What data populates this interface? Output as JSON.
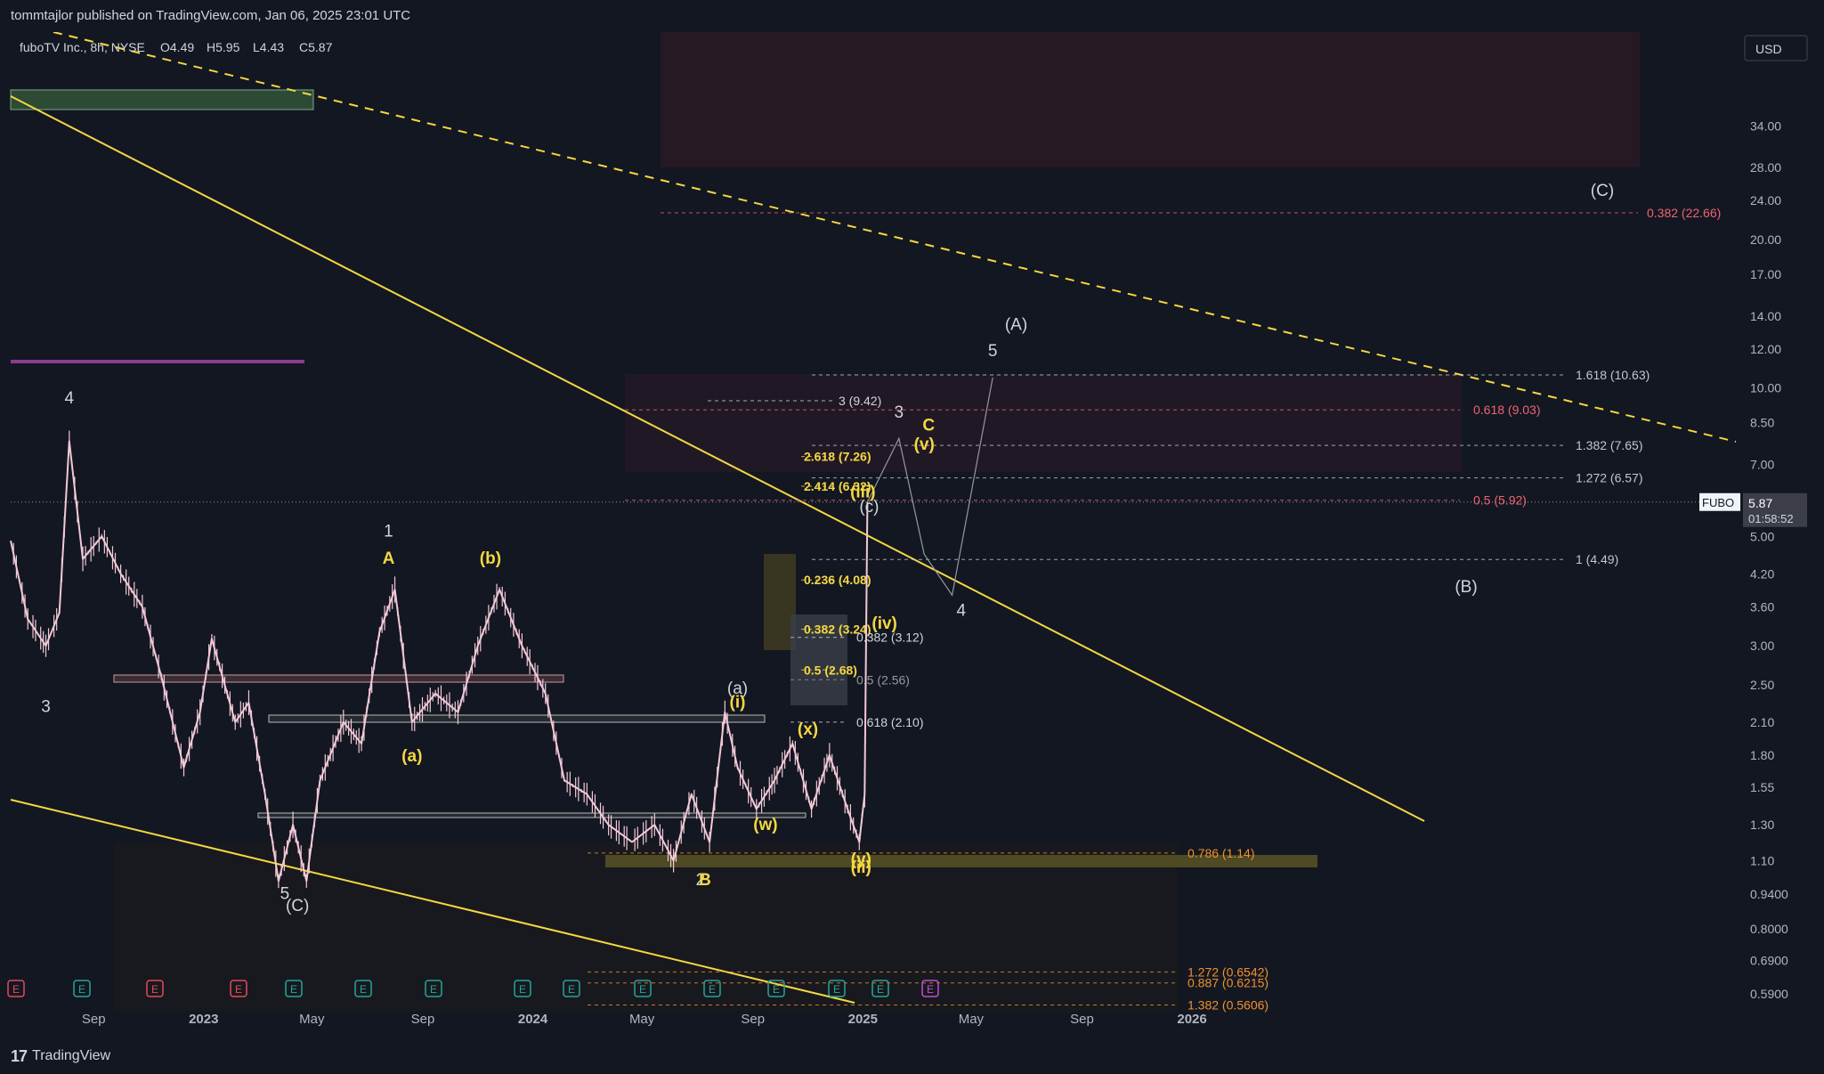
{
  "header": {
    "published": "tommtajlor published on TradingView.com, Jan 06, 2025 23:01 UTC"
  },
  "footer": {
    "logo": "17",
    "brand": "TradingView"
  },
  "chart_data": {
    "type": "line",
    "symbol_info": "fuboTV Inc., 8h, NYSE",
    "ohlc": [
      {
        "label": "O",
        "value": "4.49"
      },
      {
        "label": "H",
        "value": "5.95"
      },
      {
        "label": "L",
        "value": "4.43"
      },
      {
        "label": "C",
        "value": "5.87"
      }
    ],
    "currency": "USD",
    "ticker": "FUBO",
    "last_price": "5.87",
    "countdown": "01:58:52",
    "price_axis_scale": "log",
    "y_ticks": [
      "34.00",
      "28.00",
      "24.00",
      "20.00",
      "17.00",
      "14.00",
      "12.00",
      "10.00",
      "8.50",
      "7.00",
      "5.00",
      "4.20",
      "3.60",
      "3.00",
      "2.50",
      "2.10",
      "1.80",
      "1.55",
      "1.30",
      "1.10",
      "0.9400",
      "0.8000",
      "0.6900",
      "0.5900"
    ],
    "x_ticks": [
      {
        "label": "Sep",
        "date": "2022-09-01"
      },
      {
        "label": "2023",
        "date": "2023-01-01"
      },
      {
        "label": "May",
        "date": "2023-05-01"
      },
      {
        "label": "Sep",
        "date": "2023-09-01"
      },
      {
        "label": "2024",
        "date": "2024-01-01"
      },
      {
        "label": "May",
        "date": "2024-05-01"
      },
      {
        "label": "Sep",
        "date": "2024-09-01"
      },
      {
        "label": "2025",
        "date": "2025-01-01"
      },
      {
        "label": "May",
        "date": "2025-05-01"
      },
      {
        "label": "Sep",
        "date": "2025-09-01"
      },
      {
        "label": "2026",
        "date": "2026-01-01"
      }
    ],
    "series": [
      {
        "values": [
          {
            "x": "2022-06-01",
            "y": 4.9
          },
          {
            "x": "2022-06-20",
            "y": 3.4
          },
          {
            "x": "2022-07-10",
            "y": 3.0
          },
          {
            "x": "2022-07-25",
            "y": 3.5
          },
          {
            "x": "2022-08-05",
            "y": 7.8
          },
          {
            "x": "2022-08-20",
            "y": 4.5
          },
          {
            "x": "2022-09-10",
            "y": 5.0
          },
          {
            "x": "2022-10-01",
            "y": 4.2
          },
          {
            "x": "2022-10-25",
            "y": 3.6
          },
          {
            "x": "2022-11-15",
            "y": 2.6
          },
          {
            "x": "2022-12-10",
            "y": 1.7
          },
          {
            "x": "2022-12-28",
            "y": 2.2
          },
          {
            "x": "2023-01-10",
            "y": 3.1
          },
          {
            "x": "2023-02-05",
            "y": 2.1
          },
          {
            "x": "2023-02-20",
            "y": 2.3
          },
          {
            "x": "2023-03-10",
            "y": 1.5
          },
          {
            "x": "2023-03-25",
            "y": 1.0
          },
          {
            "x": "2023-04-10",
            "y": 1.3
          },
          {
            "x": "2023-04-25",
            "y": 1.0
          },
          {
            "x": "2023-05-10",
            "y": 1.6
          },
          {
            "x": "2023-06-05",
            "y": 2.1
          },
          {
            "x": "2023-06-25",
            "y": 1.9
          },
          {
            "x": "2023-07-15",
            "y": 3.2
          },
          {
            "x": "2023-08-01",
            "y": 3.9
          },
          {
            "x": "2023-08-20",
            "y": 2.1
          },
          {
            "x": "2023-09-15",
            "y": 2.4
          },
          {
            "x": "2023-10-10",
            "y": 2.2
          },
          {
            "x": "2023-11-01",
            "y": 3.0
          },
          {
            "x": "2023-11-25",
            "y": 3.9
          },
          {
            "x": "2023-12-20",
            "y": 3.0
          },
          {
            "x": "2024-01-15",
            "y": 2.4
          },
          {
            "x": "2024-02-05",
            "y": 1.6
          },
          {
            "x": "2024-03-01",
            "y": 1.5
          },
          {
            "x": "2024-03-25",
            "y": 1.3
          },
          {
            "x": "2024-04-20",
            "y": 1.2
          },
          {
            "x": "2024-05-15",
            "y": 1.3
          },
          {
            "x": "2024-06-05",
            "y": 1.1
          },
          {
            "x": "2024-06-25",
            "y": 1.5
          },
          {
            "x": "2024-07-15",
            "y": 1.2
          },
          {
            "x": "2024-08-01",
            "y": 2.2
          },
          {
            "x": "2024-08-15",
            "y": 1.7
          },
          {
            "x": "2024-09-05",
            "y": 1.4
          },
          {
            "x": "2024-09-25",
            "y": 1.6
          },
          {
            "x": "2024-10-15",
            "y": 1.9
          },
          {
            "x": "2024-11-05",
            "y": 1.4
          },
          {
            "x": "2024-11-25",
            "y": 1.8
          },
          {
            "x": "2024-12-15",
            "y": 1.4
          },
          {
            "x": "2024-12-28",
            "y": 1.2
          },
          {
            "x": "2025-01-03",
            "y": 1.5
          },
          {
            "x": "2025-01-06",
            "y": 5.87
          }
        ]
      }
    ],
    "wave_labels": [
      {
        "text": "4",
        "x": "2022-08-05",
        "y": 9.3,
        "color": "#d1d4dc"
      },
      {
        "text": "3",
        "x": "2022-07-10",
        "y": 2.2,
        "color": "#d1d4dc"
      },
      {
        "text": "5",
        "x": "2023-04-01",
        "y": 0.92,
        "color": "#d1d4dc"
      },
      {
        "text": "(C)",
        "x": "2023-04-15",
        "y": 0.87,
        "color": "#d1d4dc"
      },
      {
        "text": "1",
        "x": "2023-07-25",
        "y": 5.0,
        "color": "#d1d4dc"
      },
      {
        "text": "A",
        "x": "2023-07-25",
        "y": 4.4,
        "color": "#f5d742"
      },
      {
        "text": "(a)",
        "x": "2023-08-20",
        "y": 1.75,
        "color": "#f5d742"
      },
      {
        "text": "(b)",
        "x": "2023-11-15",
        "y": 4.4,
        "color": "#f5d742"
      },
      {
        "text": "2",
        "x": "2024-07-05",
        "y": 0.98,
        "color": "#d1d4dc"
      },
      {
        "text": "B",
        "x": "2024-07-10",
        "y": 0.98,
        "color": "#f5d742"
      },
      {
        "text": "(a)",
        "x": "2024-08-15",
        "y": 2.4,
        "color": "#d1d4dc"
      },
      {
        "text": "(i)",
        "x": "2024-08-15",
        "y": 2.25,
        "color": "#f5d742"
      },
      {
        "text": "(w)",
        "x": "2024-09-15",
        "y": 1.27,
        "color": "#f5d742"
      },
      {
        "text": "(x)",
        "x": "2024-11-01",
        "y": 1.98,
        "color": "#f5d742"
      },
      {
        "text": "(y)",
        "x": "2024-12-30",
        "y": 1.08,
        "color": "#f5d742"
      },
      {
        "text": "(ii)",
        "x": "2024-12-30",
        "y": 1.04,
        "color": "#f5d742"
      },
      {
        "text": "(iii)",
        "x": "2025-01-01",
        "y": 6.0,
        "color": "#f5d742"
      },
      {
        "text": "(c)",
        "x": "2025-01-08",
        "y": 5.6,
        "color": "#d1d4dc"
      },
      {
        "text": "(iv)",
        "x": "2025-01-25",
        "y": 3.25,
        "color": "#f5d742"
      },
      {
        "text": "(v)",
        "x": "2025-03-10",
        "y": 7.5,
        "color": "#f5d742"
      },
      {
        "text": "3",
        "x": "2025-02-10",
        "y": 8.7,
        "color": "#d1d4dc"
      },
      {
        "text": "C",
        "x": "2025-03-15",
        "y": 8.2,
        "color": "#f5d742"
      },
      {
        "text": "4",
        "x": "2025-04-20",
        "y": 3.45,
        "color": "#d1d4dc"
      },
      {
        "text": "5",
        "x": "2025-05-25",
        "y": 11.6,
        "color": "#d1d4dc"
      },
      {
        "text": "(A)",
        "x": "2025-06-20",
        "y": 13.1,
        "color": "#d1d4dc"
      },
      {
        "text": "(B)",
        "x": "2026-11-01",
        "y": 3.85,
        "color": "#d1d4dc"
      },
      {
        "text": "(C)",
        "x": "2027-04-01",
        "y": 24.5,
        "color": "#d1d4dc"
      }
    ],
    "fib_levels": [
      {
        "text": "1.618 (10.63)",
        "y": 10.63,
        "color": "#c3c6cc"
      },
      {
        "text": "1.382 (7.65)",
        "y": 7.65,
        "color": "#c3c6cc"
      },
      {
        "text": "1.272 (6.57)",
        "y": 6.57,
        "color": "#c3c6cc"
      },
      {
        "text": "1 (4.49)",
        "y": 4.49,
        "color": "#c3c6cc"
      },
      {
        "text": "0.618 (9.03)",
        "y": 9.03,
        "color": "#f06372"
      },
      {
        "text": "0.5 (5.92)",
        "y": 5.92,
        "color": "#f06372"
      },
      {
        "text": "0.382 (22.66)",
        "y": 22.66,
        "color": "#f06372"
      },
      {
        "text": "3 (9.42)",
        "y": 9.42,
        "color": "#d1d4dc"
      },
      {
        "text": "2.618 (7.26)",
        "y": 7.26,
        "color": "#f5d742"
      },
      {
        "text": "2.414 (6.32)",
        "y": 6.32,
        "color": "#f5d742"
      },
      {
        "text": "0.236 (4.08)",
        "y": 4.08,
        "color": "#f5d742"
      },
      {
        "text": "0.382 (3.24)",
        "y": 3.24,
        "color": "#f5d742"
      },
      {
        "text": "0.5 (2.68)",
        "y": 2.68,
        "color": "#f5d742"
      },
      {
        "text": "0.382 (3.12)",
        "y": 3.12,
        "color": "#d1d4dc"
      },
      {
        "text": "0.5 (2.56)",
        "y": 2.56,
        "color": "#9598a1"
      },
      {
        "text": "0.618 (2.10)",
        "y": 2.1,
        "color": "#d1d4dc"
      },
      {
        "text": "0.786 (1.14)",
        "y": 1.14,
        "color": "#f0912b"
      },
      {
        "text": "1.272 (0.6542)",
        "y": 0.6542,
        "color": "#f0912b"
      },
      {
        "text": "0.887 (0.6215)",
        "y": 0.6215,
        "color": "#f0912b"
      },
      {
        "text": "1.382 (0.5606)",
        "y": 0.5606,
        "color": "#f0912b"
      }
    ],
    "event_markers": [
      "E",
      "E",
      "E",
      "E",
      "E",
      "E",
      "E",
      "E",
      "E",
      "E",
      "E",
      "E",
      "E",
      "E",
      "E"
    ],
    "colors": {
      "background": "#131722",
      "candles": "#f2c9d6",
      "trend": "#f5d742",
      "fib_red": "#f06372",
      "fib_orange": "#f0912b",
      "text": "#d1d4dc"
    }
  }
}
